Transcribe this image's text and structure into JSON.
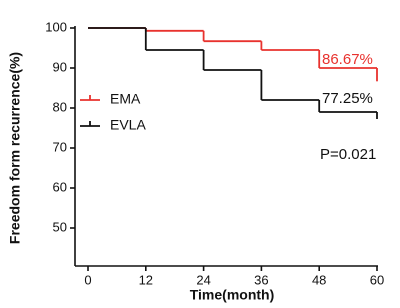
{
  "chart_data": {
    "type": "step",
    "xlabel": "Time(month)",
    "ylabel": "Freedom form recurrence(%)",
    "x": [
      0,
      12,
      24,
      36,
      48,
      60
    ],
    "series": [
      {
        "name": "EMA",
        "color": "#e8322e",
        "values": [
          100,
          99.3,
          96.7,
          94.5,
          90,
          86.67
        ]
      },
      {
        "name": "EVLA",
        "color": "#111111",
        "values": [
          100,
          94.5,
          89.5,
          82,
          79,
          77.25
        ]
      }
    ],
    "xlim": [
      -2.7,
      60
    ],
    "xticks": [
      0,
      12,
      24,
      36,
      48,
      60
    ],
    "ylim": [
      40.5,
      100
    ],
    "yticks": [
      50,
      60,
      70,
      80,
      90,
      100
    ],
    "legend": "left",
    "annotations": [
      {
        "text": "86.67%",
        "color": "#e8322e"
      },
      {
        "text": "77.25%",
        "color": "#111111"
      },
      {
        "text": "P=0.021",
        "color": "#111111"
      }
    ]
  }
}
